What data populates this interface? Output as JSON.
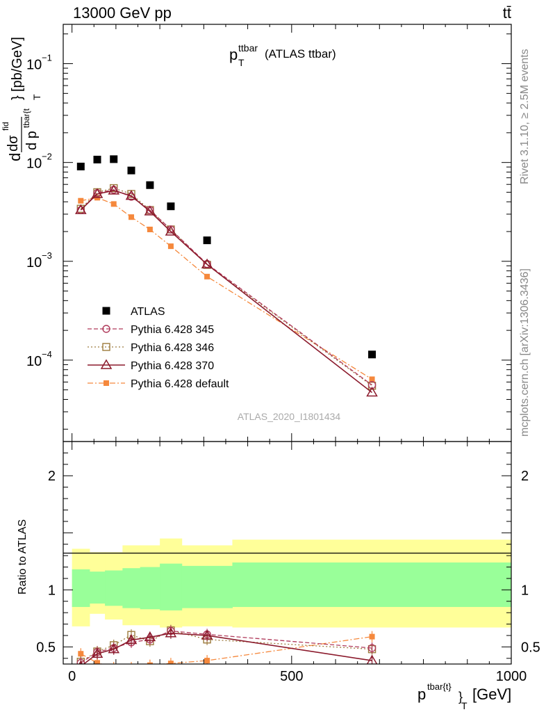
{
  "header": {
    "beam": "13000 GeV pp",
    "process": "tt̄"
  },
  "side_labels": {
    "rivet": "Rivet 3.1.10, ≥ 2.5M events",
    "mcplots": "mcplots.cern.ch [arXiv:1306.3436]"
  },
  "watermark": "ATLAS_2020_I1801434",
  "colors": {
    "data": "#000000",
    "p345": "#b03a5b",
    "p346": "#9c7a3c",
    "p370": "#8b1a2c",
    "default": "#f5883c",
    "band_inner": "#99ff99",
    "band_outer": "#ffff99"
  },
  "chart_data": {
    "type": "line",
    "title": "p_T^{ttbar} (ATLAS ttbar)",
    "title_main": "p",
    "title_sub": "T",
    "title_sup": "ttbar",
    "title_rest": "(ATLAS ttbar)",
    "xlabel": "p^{tbar{t}}_T [GeV]",
    "xlabel_main": "p",
    "xlabel_sup": "tbar{t}",
    "xlabel_close": "}",
    "xlabel_sub": "T",
    "xlabel_rest": "[GeV]",
    "ylabel": "dσ^{fid}/dp^{tbar{t}}_T [pb/GeV]",
    "ylabel_d1": "d",
    "ylabel_dsigma": "dσ",
    "ylabel_fid": "fid",
    "ylabel_dp": "d p",
    "ylabel_sup": "tbar{t",
    "ylabel_close": "}",
    "ylabel_unit": "[pb/GeV]",
    "ylabel_T": "T",
    "ratio_ylabel": "Ratio to ATLAS",
    "xlim": [
      -20,
      1000
    ],
    "ylim": [
      1.5e-05,
      0.25
    ],
    "yscale": "log",
    "ratio_ylim": [
      0.35,
      2.3
    ],
    "x_ticks": [
      "0",
      "500",
      "1000"
    ],
    "y_ticks": [
      {
        "base": "10",
        "exp": "−1"
      },
      {
        "base": "10",
        "exp": "−2"
      },
      {
        "base": "10",
        "exp": "−3"
      },
      {
        "base": "10",
        "exp": "−4"
      }
    ],
    "ratio_ticks": [
      "0.5",
      "1",
      "2"
    ],
    "legend_position": "bottom-left",
    "x": [
      20,
      57.5,
      95,
      135,
      177.5,
      225,
      307.5,
      683
    ],
    "bin_edges": [
      0,
      40,
      75,
      115,
      155,
      200,
      250,
      365,
      1000
    ],
    "series": [
      {
        "name": "ATLAS",
        "kind": "data",
        "values": [
          0.0091,
          0.0107,
          0.0108,
          0.0083,
          0.0059,
          0.0036,
          0.00163,
          0.000114
        ]
      },
      {
        "name": "Pythia 6.428 345",
        "kind": "p345",
        "values": [
          0.0033,
          0.0049,
          0.0053,
          0.0045,
          0.0033,
          0.0021,
          0.00094,
          5.6e-05
        ]
      },
      {
        "name": "Pythia 6.428 346",
        "kind": "p346",
        "values": [
          0.0034,
          0.005,
          0.0055,
          0.0048,
          0.0033,
          0.0021,
          0.00092,
          5.5e-05
        ]
      },
      {
        "name": "Pythia 6.428 370",
        "kind": "p370",
        "values": [
          0.0033,
          0.0048,
          0.0052,
          0.0046,
          0.0032,
          0.002,
          0.00093,
          4.7e-05
        ]
      },
      {
        "name": "Pythia 6.428 default",
        "kind": "default",
        "values": [
          0.0041,
          0.0044,
          0.0038,
          0.0028,
          0.0021,
          0.00142,
          0.0007,
          6.4e-05
        ]
      }
    ],
    "ratio": {
      "band_inner": [
        [
          0.85,
          1.18
        ],
        [
          0.88,
          1.16
        ],
        [
          0.86,
          1.17
        ],
        [
          0.84,
          1.19
        ],
        [
          0.83,
          1.2
        ],
        [
          0.82,
          1.23
        ],
        [
          0.84,
          1.21
        ],
        [
          0.85,
          1.24
        ]
      ],
      "band_outer": [
        [
          0.68,
          1.36
        ],
        [
          0.79,
          1.33
        ],
        [
          0.74,
          1.33
        ],
        [
          0.69,
          1.39
        ],
        [
          0.69,
          1.39
        ],
        [
          0.67,
          1.45
        ],
        [
          0.68,
          1.39
        ],
        [
          0.67,
          1.44
        ]
      ],
      "series": [
        {
          "name": "Pythia 6.428 345",
          "kind": "p345",
          "values": [
            0.36,
            0.455,
            0.49,
            0.54,
            0.565,
            0.64,
            0.61,
            0.49
          ]
        },
        {
          "name": "Pythia 6.428 346",
          "kind": "p346",
          "values": [
            0.37,
            0.46,
            0.515,
            0.605,
            0.55,
            0.645,
            0.565,
            0.48
          ]
        },
        {
          "name": "Pythia 6.428 370",
          "kind": "p370",
          "values": [
            0.33,
            0.44,
            0.48,
            0.56,
            0.585,
            0.62,
            0.6,
            0.38
          ]
        },
        {
          "name": "Pythia 6.428 default",
          "kind": "default",
          "values": [
            0.44,
            0.36,
            0.32,
            0.32,
            0.34,
            0.355,
            0.38,
            0.59
          ]
        }
      ]
    }
  }
}
